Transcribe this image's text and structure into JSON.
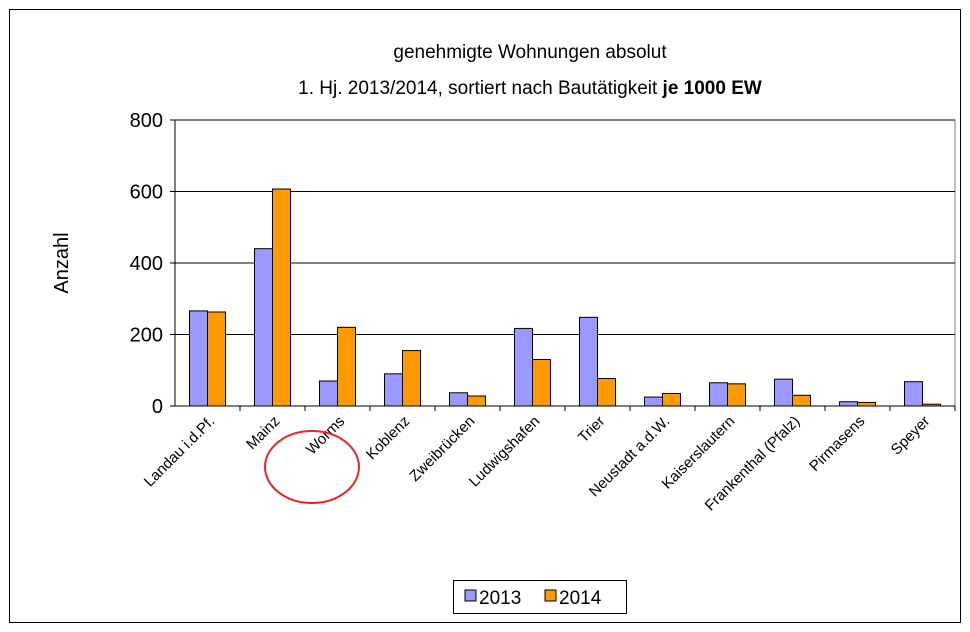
{
  "chart_data": {
    "type": "bar",
    "title": "genehmigte Wohnungen absolut",
    "subtitle": "1. Hj. 2013/2014, sortiert nach Bautätigkeit",
    "subtitle_bold": "je 1000 EW",
    "y_label": "Anzahl",
    "categories": [
      "Landau i.d.Pf.",
      "Mainz",
      "Worms",
      "Koblenz",
      "Zweibrücken",
      "Ludwigshafen",
      "Trier",
      "Neustadt a.d.W.",
      "Kaiserslautern",
      "Frankenthal (Pfalz)",
      "Pirmasens",
      "Speyer"
    ],
    "series": [
      {
        "name": "2013",
        "color": "#9999ff",
        "values": [
          266,
          440,
          70,
          90,
          37,
          217,
          248,
          25,
          65,
          75,
          12,
          68
        ]
      },
      {
        "name": "2014",
        "color": "#ff9900",
        "values": [
          263,
          607,
          220,
          155,
          28,
          130,
          77,
          35,
          62,
          30,
          10,
          5
        ]
      }
    ],
    "ylim": [
      0,
      800
    ],
    "yticks": [
      0,
      200,
      400,
      600,
      800
    ],
    "grid": true,
    "legend": "bottom"
  }
}
